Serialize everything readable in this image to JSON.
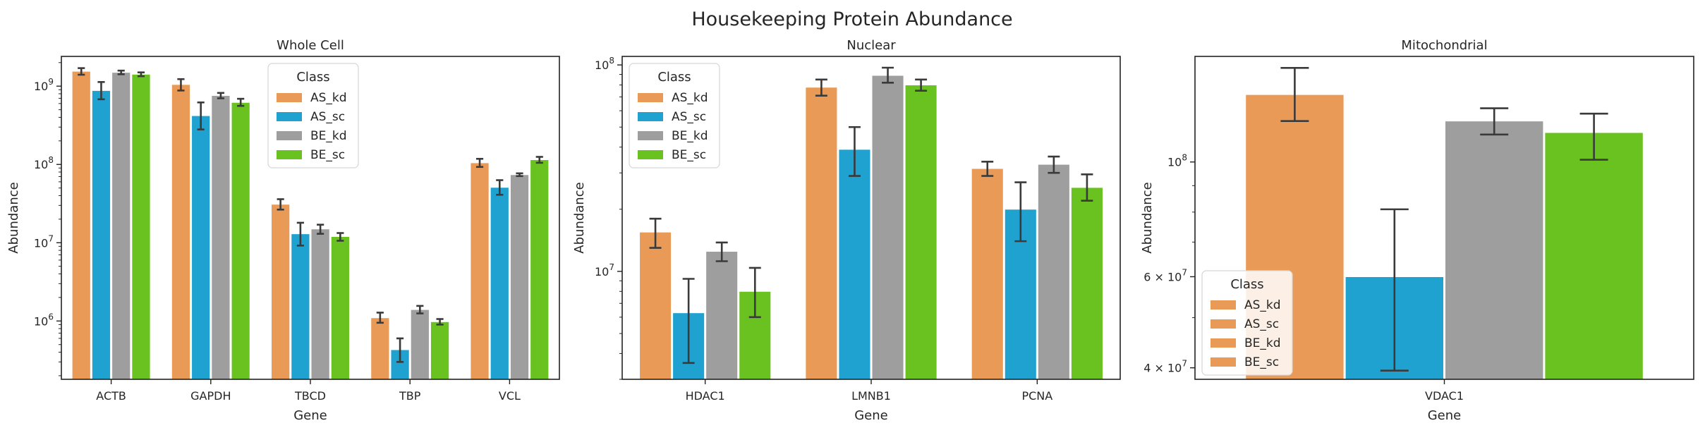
{
  "suptitle": "Housekeeping Protein Abundance",
  "colors": {
    "AS_kd": "#e99a57",
    "AS_sc": "#20a2d1",
    "BE_kd": "#9e9e9e",
    "BE_sc": "#6ac220",
    "err": "#3a3a3a"
  },
  "chart_data": [
    {
      "type": "bar",
      "title": "Whole Cell",
      "xlabel": "Gene",
      "ylabel": "Abundance",
      "yscale": "log",
      "ylim": [
        180000,
        2400000000
      ],
      "yticks": [
        {
          "value": 1000000,
          "base": "10",
          "exp": "6"
        },
        {
          "value": 10000000,
          "base": "10",
          "exp": "7"
        },
        {
          "value": 100000000,
          "base": "10",
          "exp": "8"
        },
        {
          "value": 1000000000,
          "base": "10",
          "exp": "9"
        }
      ],
      "categories": [
        "ACTB",
        "GAPDH",
        "TBCD",
        "TBP",
        "VCL"
      ],
      "series": [
        {
          "name": "AS_kd",
          "values": [
            1550000000,
            1050000000,
            31000000,
            1100000,
            105000000
          ],
          "err_low": [
            1400000000,
            880000000,
            26500000,
            950000,
            93000000
          ],
          "err_high": [
            1700000000,
            1230000000,
            36000000,
            1280000,
            118000000
          ]
        },
        {
          "name": "AS_sc",
          "values": [
            880000000,
            420000000,
            13000000,
            430000,
            51000000
          ],
          "err_low": [
            680000000,
            280000000,
            9200000,
            300000,
            41000000
          ],
          "err_high": [
            1130000000,
            620000000,
            18000000,
            600000,
            63000000
          ]
        },
        {
          "name": "BE_kd",
          "values": [
            1500000000,
            760000000,
            15000000,
            1400000,
            74000000
          ],
          "err_low": [
            1420000000,
            700000000,
            13000000,
            1250000,
            71000000
          ],
          "err_high": [
            1580000000,
            820000000,
            17000000,
            1560000,
            77000000
          ]
        },
        {
          "name": "BE_sc",
          "values": [
            1420000000,
            620000000,
            12000000,
            980000,
            115000000
          ],
          "err_low": [
            1340000000,
            560000000,
            10600000,
            900000,
            105000000
          ],
          "err_high": [
            1500000000,
            690000000,
            13300000,
            1060000,
            125000000
          ]
        }
      ],
      "legend": {
        "title": "Class",
        "loc": "upper center"
      }
    },
    {
      "type": "bar",
      "title": "Nuclear",
      "xlabel": "Gene",
      "ylabel": "Abundance",
      "yscale": "log",
      "ylim": [
        3000000,
        110000000
      ],
      "yticks": [
        {
          "value": 10000000,
          "base": "10",
          "exp": "7"
        },
        {
          "value": 100000000,
          "base": "10",
          "exp": "8"
        }
      ],
      "categories": [
        "HDAC1",
        "LMNB1",
        "PCNA"
      ],
      "series": [
        {
          "name": "AS_kd",
          "values": [
            15500000,
            78000000,
            31500000
          ],
          "err_low": [
            13000000,
            71000000,
            29000000
          ],
          "err_high": [
            18000000,
            85000000,
            34000000
          ]
        },
        {
          "name": "AS_sc",
          "values": [
            6300000,
            39000000,
            20000000
          ],
          "err_low": [
            3600000,
            29000000,
            14000000
          ],
          "err_high": [
            9200000,
            50000000,
            27000000
          ]
        },
        {
          "name": "BE_kd",
          "values": [
            12500000,
            89000000,
            33000000
          ],
          "err_low": [
            11200000,
            82000000,
            30000000
          ],
          "err_high": [
            13800000,
            97000000,
            36000000
          ]
        },
        {
          "name": "BE_sc",
          "values": [
            8000000,
            80000000,
            25500000
          ],
          "err_low": [
            6000000,
            75000000,
            22000000
          ],
          "err_high": [
            10400000,
            85000000,
            29500000
          ]
        }
      ],
      "legend": {
        "title": "Class",
        "loc": "upper left"
      }
    },
    {
      "type": "bar",
      "title": "Mitochondrial",
      "xlabel": "Gene",
      "ylabel": "Abundance",
      "yscale": "log",
      "ylim": [
        38000000,
        160000000
      ],
      "yticks": [
        {
          "value": 40000000,
          "base": "4 × 10",
          "exp": "7"
        },
        {
          "value": 60000000,
          "base": "6 × 10",
          "exp": "7"
        },
        {
          "value": 100000000,
          "base": "10",
          "exp": "8"
        }
      ],
      "categories": [
        "VDAC1"
      ],
      "series": [
        {
          "name": "AS_kd",
          "values": [
            135000000
          ],
          "err_low": [
            120000000
          ],
          "err_high": [
            152000000
          ]
        },
        {
          "name": "AS_sc",
          "values": [
            60000000
          ],
          "err_low": [
            39500000
          ],
          "err_high": [
            81000000
          ]
        },
        {
          "name": "BE_kd",
          "values": [
            120000000
          ],
          "err_low": [
            113000000
          ],
          "err_high": [
            127000000
          ]
        },
        {
          "name": "BE_sc",
          "values": [
            114000000
          ],
          "err_low": [
            101000000
          ],
          "err_high": [
            124000000
          ]
        }
      ],
      "legend": {
        "title": "Class",
        "loc": "lower left",
        "swatch_color": "AS_kd"
      }
    }
  ]
}
